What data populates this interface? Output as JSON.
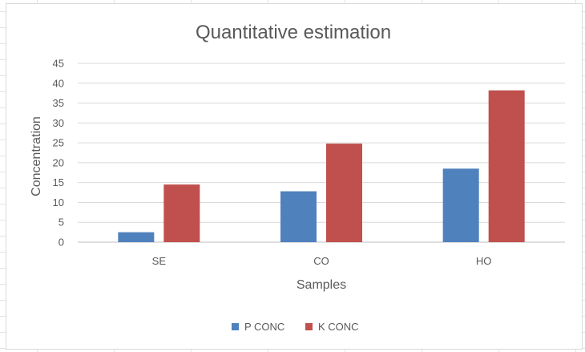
{
  "chart_data": {
    "type": "bar",
    "title": "Quantitative estimation",
    "xlabel": "Samples",
    "ylabel": "Concentration",
    "categories": [
      "SE",
      "CO",
      "HO"
    ],
    "series": [
      {
        "name": "P CONC",
        "color": "#4f81bd",
        "values": [
          2.5,
          12.8,
          18.5
        ]
      },
      {
        "name": "K CONC",
        "color": "#c0504d",
        "values": [
          14.5,
          24.8,
          38.2
        ]
      }
    ],
    "ylim": [
      0,
      45
    ],
    "yticks": [
      "0",
      "5",
      "10",
      "15",
      "20",
      "25",
      "30",
      "35",
      "40",
      "45"
    ],
    "grid": true,
    "legend_position": "bottom"
  }
}
